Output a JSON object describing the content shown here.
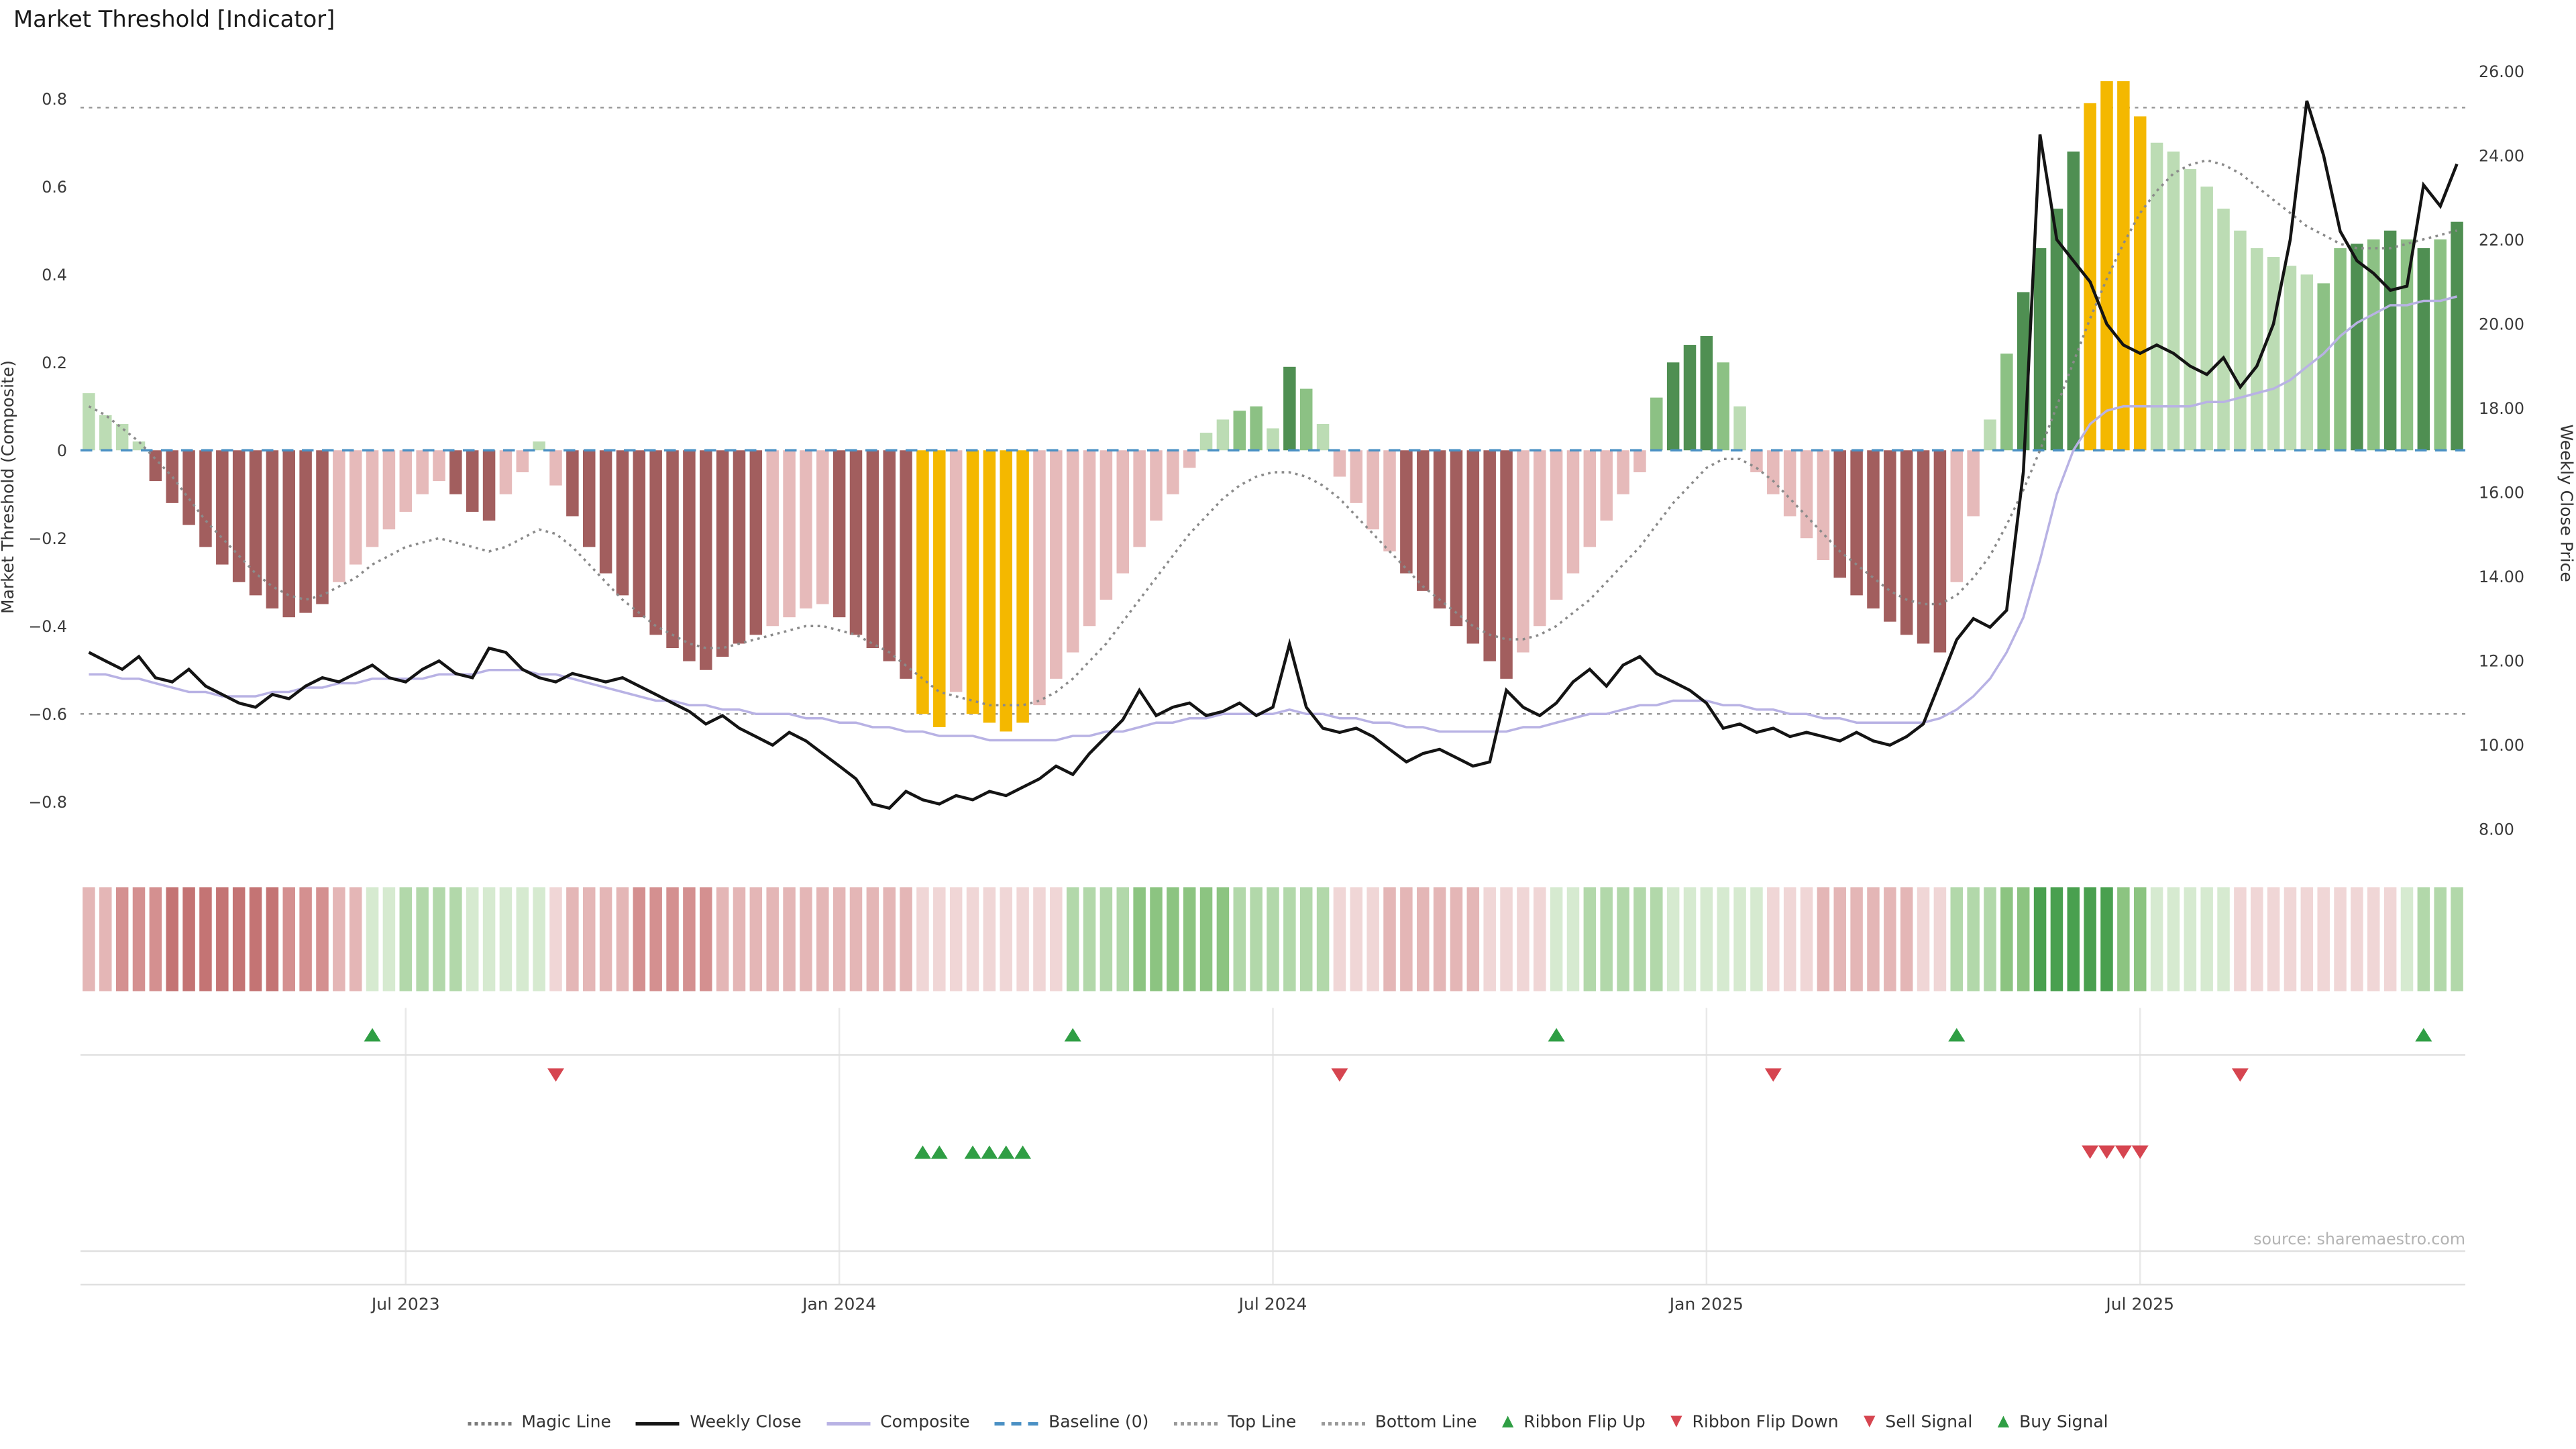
{
  "source_note": "source: sharemaestro.com",
  "legend": {
    "items": [
      {
        "label": "Magic Line",
        "marker": "dotted-line",
        "color": "#7a7a7a"
      },
      {
        "label": "Weekly Close",
        "marker": "solid-line",
        "color": "#141414"
      },
      {
        "label": "Composite",
        "marker": "solid-line",
        "color": "#b8b2e4"
      },
      {
        "label": "Baseline (0)",
        "marker": "dashed-line",
        "color": "#4a90c4"
      },
      {
        "label": "Top Line",
        "marker": "dotted-line",
        "color": "#999999"
      },
      {
        "label": "Bottom Line",
        "marker": "dotted-line",
        "color": "#999999"
      },
      {
        "label": "Ribbon Flip Up",
        "marker": "triangle-up",
        "color": "#2f9e44"
      },
      {
        "label": "Ribbon Flip Down",
        "marker": "triangle-down",
        "color": "#d64550"
      },
      {
        "label": "Sell Signal",
        "marker": "triangle-down",
        "color": "#d64550"
      },
      {
        "label": "Buy Signal",
        "marker": "triangle-up",
        "color": "#2f9e44"
      }
    ]
  },
  "chart_data": {
    "type": "bar",
    "title": "Market Threshold [Indicator]",
    "ylabel_left": "Market Threshold (Composite)",
    "ylabel_right": "Weekly Close Price",
    "left_ylim": [
      -0.93,
      0.88
    ],
    "right_ylim": [
      7.3,
      26.2
    ],
    "baseline": 0,
    "top_line": 0.78,
    "bottom_line": -0.6,
    "x_unit": "week",
    "x_ticks": [
      {
        "label": "Jul 2023",
        "week": 19
      },
      {
        "label": "Jan 2024",
        "week": 45
      },
      {
        "label": "Jul 2024",
        "week": 71
      },
      {
        "label": "Jan 2025",
        "week": 97
      },
      {
        "label": "Jul 2025",
        "week": 123
      }
    ],
    "left_ticks": [
      {
        "label": "−0.8",
        "value": -0.8
      },
      {
        "label": "−0.6",
        "value": -0.6
      },
      {
        "label": "−0.4",
        "value": -0.4
      },
      {
        "label": "−0.2",
        "value": -0.2
      },
      {
        "label": "0",
        "value": 0
      },
      {
        "label": "0.2",
        "value": 0.2
      },
      {
        "label": "0.4",
        "value": 0.4
      },
      {
        "label": "0.6",
        "value": 0.6
      },
      {
        "label": "0.8",
        "value": 0.8
      }
    ],
    "right_ticks": [
      {
        "label": "8.00",
        "value": 8
      },
      {
        "label": "10.00",
        "value": 10
      },
      {
        "label": "12.00",
        "value": 12
      },
      {
        "label": "14.00",
        "value": 14
      },
      {
        "label": "16.00",
        "value": 16
      },
      {
        "label": "18.00",
        "value": 18
      },
      {
        "label": "20.00",
        "value": 20
      },
      {
        "label": "22.00",
        "value": 22
      },
      {
        "label": "24.00",
        "value": 24
      },
      {
        "label": "26.00",
        "value": 26
      }
    ],
    "palette": {
      "dr": "#a25e5e",
      "lr": "#e6baba",
      "lg": "#bcdcb4",
      "mg": "#8cc184",
      "dg": "#4f8f52",
      "gold": "#f4b800",
      "r1": "#f0d6d6",
      "r2": "#e4b6b6",
      "r3": "#d49090",
      "r4": "#c47474",
      "g1": "#d6ead0",
      "g2": "#b2d8aa",
      "g3": "#8cc481",
      "g4": "#49a04f"
    },
    "bars": {
      "name": "Composite Histogram",
      "values": [
        0.13,
        0.08,
        0.06,
        0.02,
        -0.07,
        -0.12,
        -0.17,
        -0.22,
        -0.26,
        -0.3,
        -0.33,
        -0.36,
        -0.38,
        -0.37,
        -0.35,
        -0.3,
        -0.26,
        -0.22,
        -0.18,
        -0.14,
        -0.1,
        -0.07,
        -0.1,
        -0.14,
        -0.16,
        -0.1,
        -0.05,
        0.02,
        -0.08,
        -0.15,
        -0.22,
        -0.28,
        -0.33,
        -0.38,
        -0.42,
        -0.45,
        -0.48,
        -0.5,
        -0.47,
        -0.44,
        -0.42,
        -0.4,
        -0.38,
        -0.36,
        -0.35,
        -0.38,
        -0.42,
        -0.45,
        -0.48,
        -0.52,
        -0.6,
        -0.63,
        -0.55,
        -0.6,
        -0.62,
        -0.64,
        -0.62,
        -0.58,
        -0.52,
        -0.46,
        -0.4,
        -0.34,
        -0.28,
        -0.22,
        -0.16,
        -0.1,
        -0.04,
        0.04,
        0.07,
        0.09,
        0.1,
        0.05,
        0.19,
        0.14,
        0.06,
        -0.06,
        -0.12,
        -0.18,
        -0.23,
        -0.28,
        -0.32,
        -0.36,
        -0.4,
        -0.44,
        -0.48,
        -0.52,
        -0.46,
        -0.4,
        -0.34,
        -0.28,
        -0.22,
        -0.16,
        -0.1,
        -0.05,
        0.12,
        0.2,
        0.24,
        0.26,
        0.2,
        0.1,
        -0.05,
        -0.1,
        -0.15,
        -0.2,
        -0.25,
        -0.29,
        -0.33,
        -0.36,
        -0.39,
        -0.42,
        -0.44,
        -0.46,
        -0.3,
        -0.15,
        0.07,
        0.22,
        0.36,
        0.46,
        0.55,
        0.68,
        0.79,
        0.84,
        0.84,
        0.76,
        0.7,
        0.68,
        0.64,
        0.6,
        0.55,
        0.5,
        0.46,
        0.44,
        0.42,
        0.4,
        0.38,
        0.46,
        0.47,
        0.48,
        0.5,
        0.48,
        0.46,
        0.48,
        0.52
      ],
      "colors": [
        "lg",
        "lg",
        "lg",
        "lg",
        "dr",
        "dr",
        "dr",
        "dr",
        "dr",
        "dr",
        "dr",
        "dr",
        "dr",
        "dr",
        "dr",
        "lr",
        "lr",
        "lr",
        "lr",
        "lr",
        "lr",
        "lr",
        "dr",
        "dr",
        "dr",
        "lr",
        "lr",
        "lg",
        "lr",
        "dr",
        "dr",
        "dr",
        "dr",
        "dr",
        "dr",
        "dr",
        "dr",
        "dr",
        "dr",
        "dr",
        "dr",
        "lr",
        "lr",
        "lr",
        "lr",
        "dr",
        "dr",
        "dr",
        "dr",
        "dr",
        "gold",
        "gold",
        "lr",
        "gold",
        "gold",
        "gold",
        "gold",
        "lr",
        "lr",
        "lr",
        "lr",
        "lr",
        "lr",
        "lr",
        "lr",
        "lr",
        "lr",
        "lg",
        "lg",
        "mg",
        "mg",
        "lg",
        "dg",
        "mg",
        "lg",
        "lr",
        "lr",
        "lr",
        "lr",
        "dr",
        "dr",
        "dr",
        "dr",
        "dr",
        "dr",
        "dr",
        "lr",
        "lr",
        "lr",
        "lr",
        "lr",
        "lr",
        "lr",
        "lr",
        "mg",
        "dg",
        "dg",
        "dg",
        "mg",
        "lg",
        "lr",
        "lr",
        "lr",
        "lr",
        "lr",
        "dr",
        "dr",
        "dr",
        "dr",
        "dr",
        "dr",
        "dr",
        "lr",
        "lr",
        "lg",
        "mg",
        "dg",
        "dg",
        "dg",
        "dg",
        "gold",
        "gold",
        "gold",
        "gold",
        "lg",
        "lg",
        "lg",
        "lg",
        "lg",
        "lg",
        "lg",
        "lg",
        "lg",
        "lg",
        "mg",
        "mg",
        "dg",
        "mg",
        "dg",
        "mg",
        "dg",
        "mg",
        "dg"
      ]
    },
    "series": [
      {
        "name": "Magic Line",
        "axis": "left",
        "style": "dotted",
        "color": "#8a8a8a",
        "values": [
          0.1,
          0.08,
          0.05,
          0.02,
          -0.02,
          -0.06,
          -0.11,
          -0.16,
          -0.2,
          -0.24,
          -0.28,
          -0.31,
          -0.33,
          -0.34,
          -0.33,
          -0.31,
          -0.29,
          -0.26,
          -0.24,
          -0.22,
          -0.21,
          -0.2,
          -0.21,
          -0.22,
          -0.23,
          -0.22,
          -0.2,
          -0.18,
          -0.19,
          -0.22,
          -0.26,
          -0.3,
          -0.34,
          -0.37,
          -0.4,
          -0.42,
          -0.44,
          -0.45,
          -0.45,
          -0.44,
          -0.43,
          -0.42,
          -0.41,
          -0.4,
          -0.4,
          -0.41,
          -0.42,
          -0.44,
          -0.46,
          -0.49,
          -0.52,
          -0.55,
          -0.56,
          -0.57,
          -0.58,
          -0.58,
          -0.58,
          -0.57,
          -0.55,
          -0.52,
          -0.48,
          -0.44,
          -0.39,
          -0.34,
          -0.29,
          -0.24,
          -0.19,
          -0.15,
          -0.11,
          -0.08,
          -0.06,
          -0.05,
          -0.05,
          -0.06,
          -0.08,
          -0.11,
          -0.15,
          -0.19,
          -0.23,
          -0.27,
          -0.31,
          -0.34,
          -0.37,
          -0.4,
          -0.42,
          -0.43,
          -0.43,
          -0.42,
          -0.4,
          -0.37,
          -0.34,
          -0.3,
          -0.26,
          -0.22,
          -0.17,
          -0.12,
          -0.08,
          -0.04,
          -0.02,
          -0.02,
          -0.04,
          -0.07,
          -0.11,
          -0.15,
          -0.19,
          -0.23,
          -0.26,
          -0.29,
          -0.32,
          -0.34,
          -0.35,
          -0.35,
          -0.33,
          -0.29,
          -0.24,
          -0.17,
          -0.09,
          0.0,
          0.1,
          0.2,
          0.3,
          0.39,
          0.47,
          0.54,
          0.59,
          0.63,
          0.65,
          0.66,
          0.65,
          0.63,
          0.6,
          0.57,
          0.54,
          0.51,
          0.49,
          0.47,
          0.46,
          0.46,
          0.46,
          0.47,
          0.48,
          0.49,
          0.5
        ]
      },
      {
        "name": "Composite",
        "axis": "left",
        "style": "solid",
        "color": "#b8b2e4",
        "values": [
          -0.51,
          -0.51,
          -0.52,
          -0.52,
          -0.53,
          -0.54,
          -0.55,
          -0.55,
          -0.56,
          -0.56,
          -0.56,
          -0.55,
          -0.55,
          -0.54,
          -0.54,
          -0.53,
          -0.53,
          -0.52,
          -0.52,
          -0.52,
          -0.52,
          -0.51,
          -0.51,
          -0.51,
          -0.5,
          -0.5,
          -0.5,
          -0.51,
          -0.51,
          -0.52,
          -0.53,
          -0.54,
          -0.55,
          -0.56,
          -0.57,
          -0.57,
          -0.58,
          -0.58,
          -0.59,
          -0.59,
          -0.6,
          -0.6,
          -0.6,
          -0.61,
          -0.61,
          -0.62,
          -0.62,
          -0.63,
          -0.63,
          -0.64,
          -0.64,
          -0.65,
          -0.65,
          -0.65,
          -0.66,
          -0.66,
          -0.66,
          -0.66,
          -0.66,
          -0.65,
          -0.65,
          -0.64,
          -0.64,
          -0.63,
          -0.62,
          -0.62,
          -0.61,
          -0.61,
          -0.6,
          -0.6,
          -0.6,
          -0.6,
          -0.59,
          -0.6,
          -0.6,
          -0.61,
          -0.61,
          -0.62,
          -0.62,
          -0.63,
          -0.63,
          -0.64,
          -0.64,
          -0.64,
          -0.64,
          -0.64,
          -0.63,
          -0.63,
          -0.62,
          -0.61,
          -0.6,
          -0.6,
          -0.59,
          -0.58,
          -0.58,
          -0.57,
          -0.57,
          -0.57,
          -0.58,
          -0.58,
          -0.59,
          -0.59,
          -0.6,
          -0.6,
          -0.61,
          -0.61,
          -0.62,
          -0.62,
          -0.62,
          -0.62,
          -0.62,
          -0.61,
          -0.59,
          -0.56,
          -0.52,
          -0.46,
          -0.38,
          -0.25,
          -0.1,
          0.0,
          0.06,
          0.09,
          0.1,
          0.1,
          0.1,
          0.1,
          0.1,
          0.11,
          0.11,
          0.12,
          0.13,
          0.14,
          0.16,
          0.19,
          0.22,
          0.26,
          0.29,
          0.31,
          0.33,
          0.33,
          0.34,
          0.34,
          0.35
        ]
      },
      {
        "name": "Weekly Close",
        "axis": "right",
        "style": "solid",
        "color": "#141414",
        "values": [
          12.2,
          12.0,
          11.8,
          12.1,
          11.6,
          11.5,
          11.8,
          11.4,
          11.2,
          11.0,
          10.9,
          11.2,
          11.1,
          11.4,
          11.6,
          11.5,
          11.7,
          11.9,
          11.6,
          11.5,
          11.8,
          12.0,
          11.7,
          11.6,
          12.3,
          12.2,
          11.8,
          11.6,
          11.5,
          11.7,
          11.6,
          11.5,
          11.6,
          11.4,
          11.2,
          11.0,
          10.8,
          10.5,
          10.7,
          10.4,
          10.2,
          10.0,
          10.3,
          10.1,
          9.8,
          9.5,
          9.2,
          8.6,
          8.5,
          8.9,
          8.7,
          8.6,
          8.8,
          8.7,
          8.9,
          8.8,
          9.0,
          9.2,
          9.5,
          9.3,
          9.8,
          10.2,
          10.6,
          11.3,
          10.7,
          10.9,
          11.0,
          10.7,
          10.8,
          11.0,
          10.7,
          10.9,
          12.4,
          10.9,
          10.4,
          10.3,
          10.4,
          10.2,
          9.9,
          9.6,
          9.8,
          9.9,
          9.7,
          9.5,
          9.6,
          11.3,
          10.9,
          10.7,
          11.0,
          11.5,
          11.8,
          11.4,
          11.9,
          12.1,
          11.7,
          11.5,
          11.3,
          11.0,
          10.4,
          10.5,
          10.3,
          10.4,
          10.2,
          10.3,
          10.2,
          10.1,
          10.3,
          10.1,
          10.0,
          10.2,
          10.5,
          11.5,
          12.5,
          13.0,
          12.8,
          13.2,
          16.5,
          24.5,
          22.0,
          21.5,
          21.0,
          20.0,
          19.5,
          19.3,
          19.5,
          19.3,
          19.0,
          18.8,
          19.2,
          18.5,
          19.0,
          20.0,
          22.0,
          25.3,
          24.0,
          22.2,
          21.5,
          21.2,
          20.8,
          20.9,
          23.3,
          22.8,
          23.8
        ]
      }
    ],
    "ribbon": [
      "r2",
      "r2",
      "r3",
      "r3",
      "r3",
      "r4",
      "r4",
      "r4",
      "r4",
      "r4",
      "r4",
      "r4",
      "r3",
      "r3",
      "r3",
      "r2",
      "r2",
      "g1",
      "g1",
      "g2",
      "g2",
      "g2",
      "g2",
      "g1",
      "g1",
      "g1",
      "g1",
      "g1",
      "r1",
      "r2",
      "r2",
      "r2",
      "r2",
      "r3",
      "r3",
      "r3",
      "r3",
      "r3",
      "r2",
      "r2",
      "r2",
      "r2",
      "r2",
      "r2",
      "r2",
      "r2",
      "r2",
      "r2",
      "r2",
      "r2",
      "r1",
      "r1",
      "r1",
      "r1",
      "r1",
      "r1",
      "r1",
      "r1",
      "r1",
      "g2",
      "g2",
      "g2",
      "g2",
      "g3",
      "g3",
      "g3",
      "g3",
      "g3",
      "g3",
      "g2",
      "g2",
      "g2",
      "g2",
      "g2",
      "g2",
      "r1",
      "r1",
      "r1",
      "r2",
      "r2",
      "r2",
      "r2",
      "r2",
      "r2",
      "r1",
      "r1",
      "r1",
      "r1",
      "g1",
      "g1",
      "g2",
      "g2",
      "g2",
      "g2",
      "g2",
      "g1",
      "g1",
      "g1",
      "g1",
      "g1",
      "g1",
      "r1",
      "r1",
      "r1",
      "r2",
      "r2",
      "r2",
      "r2",
      "r2",
      "r2",
      "r1",
      "r1",
      "g2",
      "g2",
      "g2",
      "g3",
      "g3",
      "g4",
      "g4",
      "g4",
      "g4",
      "g4",
      "g3",
      "g3",
      "g1",
      "g1",
      "g1",
      "g1",
      "g1",
      "r1",
      "r1",
      "r1",
      "r1",
      "r1",
      "r1",
      "r1",
      "r1",
      "r1",
      "r1",
      "g1",
      "g2",
      "g2",
      "g2"
    ],
    "signals": {
      "ribbon_flip_up": {
        "weeks": [
          17,
          59,
          88,
          112,
          140
        ],
        "color": "#2f9e44"
      },
      "ribbon_flip_down": {
        "weeks": [
          28,
          75,
          101,
          129
        ],
        "color": "#d64550"
      },
      "buy": {
        "weeks": [
          50,
          51,
          53,
          54,
          55,
          56
        ],
        "color": "#2f9e44"
      },
      "sell": {
        "weeks": [
          120,
          121,
          122,
          123
        ],
        "color": "#d64550"
      }
    }
  }
}
